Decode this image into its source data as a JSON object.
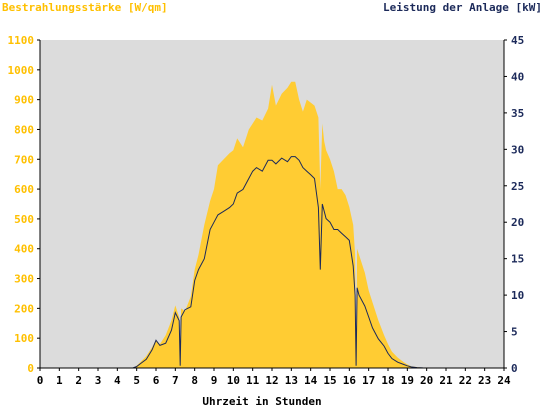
{
  "header": {
    "left_title": "Bestrahlungsstärke [W/qm]",
    "right_title": "Leistung der Anlage [kW]"
  },
  "chart_data": {
    "type": "area",
    "xlabel": "Uhrzeit in Stunden",
    "ylabel_left": "Bestrahlungsstärke [W/qm]",
    "ylabel_right": "Leistung der Anlage [kW]",
    "xlim": [
      0,
      24
    ],
    "ylim_left": [
      0,
      1100
    ],
    "ylim_right": [
      0,
      45
    ],
    "x_ticks": [
      0,
      1,
      2,
      3,
      4,
      5,
      6,
      7,
      8,
      9,
      10,
      11,
      12,
      13,
      14,
      15,
      16,
      17,
      18,
      19,
      20,
      21,
      22,
      23,
      24
    ],
    "y_ticks_left": [
      0,
      100,
      200,
      300,
      400,
      500,
      600,
      700,
      800,
      900,
      1000,
      1100
    ],
    "y_ticks_right": [
      0,
      5,
      10,
      15,
      20,
      25,
      30,
      35,
      40,
      45
    ],
    "colors": {
      "background": "#dcdcdc",
      "irradiance_fill": "#ffcc33",
      "power_line": "#1c2a5a",
      "left_axis_text": "#ffc000",
      "right_axis_text": "#1c2a5a"
    },
    "series": [
      {
        "name": "Bestrahlungsstärke [W/qm]",
        "axis": "left",
        "kind": "area",
        "x": [
          0,
          4.8,
          5,
          5.2,
          5.5,
          5.8,
          6,
          6.2,
          6.5,
          6.8,
          7,
          7.2,
          7.25,
          7.3,
          7.5,
          7.8,
          8,
          8.2,
          8.5,
          8.8,
          9,
          9.2,
          9.5,
          9.8,
          10,
          10.2,
          10.5,
          10.8,
          11,
          11.2,
          11.5,
          11.8,
          12,
          12.2,
          12.5,
          12.8,
          13,
          13.2,
          13.4,
          13.6,
          13.8,
          14,
          14.2,
          14.4,
          14.5,
          14.6,
          14.7,
          14.8,
          15,
          15.2,
          15.4,
          15.6,
          15.8,
          16,
          16.2,
          16.3,
          16.35,
          16.4,
          16.5,
          16.8,
          17,
          17.2,
          17.5,
          17.8,
          18,
          18.2,
          18.5,
          18.8,
          19,
          19.2,
          19.5,
          19.8,
          20,
          20.2,
          20.5,
          24
        ],
        "values": [
          0,
          0,
          8,
          20,
          40,
          70,
          95,
          80,
          110,
          160,
          210,
          170,
          30,
          200,
          190,
          240,
          330,
          380,
          480,
          560,
          600,
          680,
          700,
          720,
          730,
          770,
          740,
          800,
          820,
          840,
          830,
          870,
          950,
          880,
          920,
          940,
          960,
          960,
          900,
          860,
          900,
          890,
          880,
          840,
          600,
          820,
          760,
          730,
          700,
          660,
          600,
          600,
          580,
          540,
          480,
          380,
          30,
          400,
          380,
          320,
          260,
          220,
          160,
          110,
          80,
          55,
          35,
          20,
          12,
          6,
          3,
          1,
          0,
          0,
          0,
          0
        ]
      },
      {
        "name": "Leistung der Anlage [kW]",
        "axis": "right",
        "kind": "line",
        "x": [
          0,
          4.8,
          5,
          5.2,
          5.5,
          5.8,
          6,
          6.2,
          6.5,
          6.8,
          7,
          7.2,
          7.25,
          7.3,
          7.5,
          7.8,
          8,
          8.2,
          8.5,
          8.8,
          9,
          9.2,
          9.5,
          9.8,
          10,
          10.2,
          10.5,
          10.8,
          11,
          11.2,
          11.5,
          11.8,
          12,
          12.2,
          12.5,
          12.8,
          13,
          13.2,
          13.4,
          13.6,
          13.8,
          14,
          14.2,
          14.4,
          14.5,
          14.6,
          14.7,
          14.8,
          15,
          15.2,
          15.4,
          15.6,
          15.8,
          16,
          16.2,
          16.3,
          16.35,
          16.4,
          16.5,
          16.8,
          17,
          17.2,
          17.5,
          17.8,
          18,
          18.2,
          18.5,
          18.8,
          19,
          19.2,
          19.5,
          19.8,
          20,
          20.2,
          20.5,
          24
        ],
        "values": [
          0,
          0,
          0.2,
          0.6,
          1.2,
          2.5,
          3.8,
          3.1,
          3.4,
          5.2,
          7.6,
          6.5,
          0.3,
          7.0,
          8.0,
          8.4,
          12.0,
          13.5,
          15.0,
          19.0,
          20.0,
          21.0,
          21.5,
          22.0,
          22.5,
          24.0,
          24.5,
          26.0,
          27.0,
          27.5,
          27.0,
          28.5,
          28.5,
          28.0,
          28.8,
          28.3,
          29.0,
          29.0,
          28.5,
          27.5,
          27.0,
          26.5,
          26.0,
          22.0,
          13.5,
          22.5,
          21.5,
          20.5,
          20.0,
          19.0,
          19.0,
          18.5,
          18.0,
          17.5,
          14.0,
          10.0,
          0.3,
          11.0,
          10.0,
          8.5,
          7.0,
          5.5,
          4.0,
          3.0,
          2.0,
          1.3,
          0.8,
          0.5,
          0.3,
          0.15,
          0.05,
          0.02,
          0,
          0,
          0,
          0
        ]
      }
    ]
  }
}
